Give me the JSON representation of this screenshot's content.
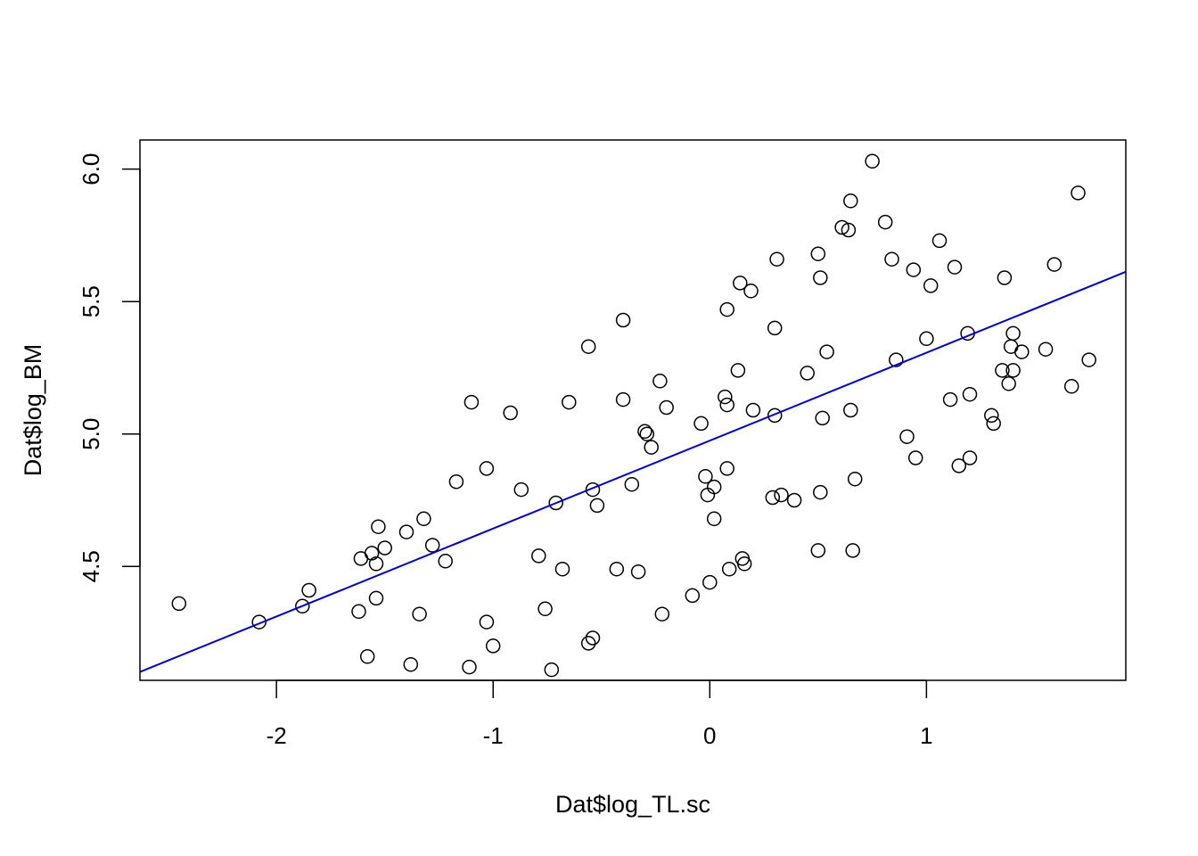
{
  "chart_data": {
    "type": "scatter",
    "title": "",
    "xlabel": "Dat$log_TL.sc",
    "ylabel": "Dat$log_BM",
    "xlim": [
      -2.63,
      1.92
    ],
    "ylim": [
      4.07,
      6.11
    ],
    "x_ticks": [
      -2,
      -1,
      0,
      1
    ],
    "y_ticks": [
      4.5,
      5.0,
      5.5,
      6.0
    ],
    "x_tick_labels": [
      "-2",
      "-1",
      "0",
      "1"
    ],
    "y_tick_labels": [
      "4.5",
      "5.0",
      "5.5",
      "6.0"
    ],
    "grid": false,
    "legend": "none",
    "point_style": "open-circle",
    "point_color": "#000000",
    "fit_line": {
      "color": "#0000cc",
      "intercept": 4.975,
      "slope": 0.332
    },
    "points": [
      [
        -2.45,
        4.36
      ],
      [
        -2.08,
        4.29
      ],
      [
        -1.88,
        4.35
      ],
      [
        -1.85,
        4.41
      ],
      [
        -1.61,
        4.53
      ],
      [
        -1.62,
        4.33
      ],
      [
        -1.58,
        4.16
      ],
      [
        -1.56,
        4.55
      ],
      [
        -1.54,
        4.51
      ],
      [
        -1.54,
        4.38
      ],
      [
        -1.53,
        4.65
      ],
      [
        -1.5,
        4.57
      ],
      [
        -1.4,
        4.63
      ],
      [
        -1.38,
        4.13
      ],
      [
        -1.34,
        4.32
      ],
      [
        -1.32,
        4.68
      ],
      [
        -1.28,
        4.58
      ],
      [
        -1.22,
        4.52
      ],
      [
        -1.17,
        4.82
      ],
      [
        -1.11,
        4.12
      ],
      [
        -1.1,
        5.12
      ],
      [
        -1.03,
        4.87
      ],
      [
        -1.03,
        4.29
      ],
      [
        -1.0,
        4.2
      ],
      [
        -0.92,
        5.08
      ],
      [
        -0.87,
        4.79
      ],
      [
        -0.79,
        4.54
      ],
      [
        -0.76,
        4.34
      ],
      [
        -0.73,
        4.11
      ],
      [
        -0.71,
        4.74
      ],
      [
        -0.68,
        4.49
      ],
      [
        -0.65,
        5.12
      ],
      [
        -0.56,
        5.33
      ],
      [
        -0.56,
        4.21
      ],
      [
        -0.54,
        4.79
      ],
      [
        -0.54,
        4.23
      ],
      [
        -0.52,
        4.73
      ],
      [
        -0.43,
        4.49
      ],
      [
        -0.4,
        5.43
      ],
      [
        -0.4,
        5.13
      ],
      [
        -0.36,
        4.81
      ],
      [
        -0.33,
        4.48
      ],
      [
        -0.3,
        5.01
      ],
      [
        -0.29,
        5.0
      ],
      [
        -0.27,
        4.95
      ],
      [
        -0.23,
        5.2
      ],
      [
        -0.22,
        4.32
      ],
      [
        -0.2,
        5.1
      ],
      [
        -0.08,
        4.39
      ],
      [
        -0.04,
        5.04
      ],
      [
        -0.02,
        4.84
      ],
      [
        -0.01,
        4.77
      ],
      [
        0.0,
        4.44
      ],
      [
        0.02,
        4.68
      ],
      [
        0.02,
        4.8
      ],
      [
        0.07,
        5.14
      ],
      [
        0.08,
        5.11
      ],
      [
        0.08,
        4.87
      ],
      [
        0.08,
        5.47
      ],
      [
        0.09,
        4.49
      ],
      [
        0.13,
        5.24
      ],
      [
        0.14,
        5.57
      ],
      [
        0.15,
        4.53
      ],
      [
        0.16,
        4.51
      ],
      [
        0.19,
        5.54
      ],
      [
        0.2,
        5.09
      ],
      [
        0.29,
        4.76
      ],
      [
        0.3,
        5.4
      ],
      [
        0.3,
        5.07
      ],
      [
        0.31,
        5.66
      ],
      [
        0.33,
        4.77
      ],
      [
        0.39,
        4.75
      ],
      [
        0.45,
        5.23
      ],
      [
        0.5,
        4.56
      ],
      [
        0.5,
        5.68
      ],
      [
        0.51,
        5.59
      ],
      [
        0.51,
        4.78
      ],
      [
        0.52,
        5.06
      ],
      [
        0.54,
        5.31
      ],
      [
        0.61,
        5.78
      ],
      [
        0.64,
        5.77
      ],
      [
        0.65,
        5.88
      ],
      [
        0.65,
        5.09
      ],
      [
        0.66,
        4.56
      ],
      [
        0.67,
        4.83
      ],
      [
        0.75,
        6.03
      ],
      [
        0.81,
        5.8
      ],
      [
        0.84,
        5.66
      ],
      [
        0.86,
        5.28
      ],
      [
        0.91,
        4.99
      ],
      [
        0.94,
        5.62
      ],
      [
        0.95,
        4.91
      ],
      [
        1.0,
        5.36
      ],
      [
        1.02,
        5.56
      ],
      [
        1.06,
        5.73
      ],
      [
        1.11,
        5.13
      ],
      [
        1.13,
        5.63
      ],
      [
        1.15,
        4.88
      ],
      [
        1.19,
        5.38
      ],
      [
        1.2,
        5.15
      ],
      [
        1.2,
        4.91
      ],
      [
        1.3,
        5.07
      ],
      [
        1.31,
        5.04
      ],
      [
        1.35,
        5.24
      ],
      [
        1.36,
        5.59
      ],
      [
        1.38,
        5.19
      ],
      [
        1.39,
        5.33
      ],
      [
        1.4,
        5.24
      ],
      [
        1.4,
        5.38
      ],
      [
        1.44,
        5.31
      ],
      [
        1.55,
        5.32
      ],
      [
        1.59,
        5.64
      ],
      [
        1.67,
        5.18
      ],
      [
        1.7,
        5.91
      ],
      [
        1.75,
        5.28
      ]
    ]
  }
}
